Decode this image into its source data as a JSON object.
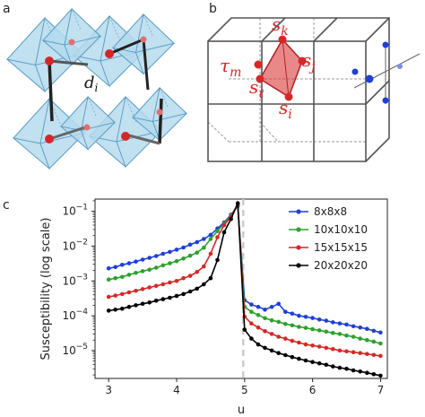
{
  "panels": {
    "a": {
      "letter": "a",
      "bond_label": "d",
      "bond_sub": "i"
    },
    "b": {
      "letter": "b",
      "site_labels": [
        {
          "sym": "s",
          "sub": "k"
        },
        {
          "sym": "τ",
          "sub": "m"
        },
        {
          "sym": "s",
          "sub": "j"
        },
        {
          "sym": "s",
          "sub": "ℓ"
        },
        {
          "sym": "s",
          "sub": "i"
        }
      ]
    },
    "c": {
      "letter": "c"
    }
  },
  "colors": {
    "octahedron_fill": "#a9d3ea",
    "octahedron_edge": "#5a9cc4",
    "atom_red": "#d62728",
    "plaquette_red": "#d62728",
    "lattice_blue": "#1f3fd6",
    "threshold_line": "#cccccc"
  },
  "chart_data": {
    "type": "line",
    "xlabel": "u",
    "ylabel": "Susceptibility (log scale)",
    "xlim": [
      2.8,
      7.1
    ],
    "ylim_log10": [
      -5.8,
      -0.65
    ],
    "yscale": "log",
    "x_ticks": [
      "3",
      "4",
      "5",
      "6",
      "7"
    ],
    "y_ticks": [
      {
        "base": "10",
        "exp": "−1"
      },
      {
        "base": "10",
        "exp": "−2"
      },
      {
        "base": "10",
        "exp": "−3"
      },
      {
        "base": "10",
        "exp": "−4"
      },
      {
        "base": "10",
        "exp": "−5"
      }
    ],
    "vline_x": 4.98,
    "legend_position": "top-right",
    "grid": false,
    "x": [
      3.0,
      3.1,
      3.2,
      3.3,
      3.4,
      3.5,
      3.6,
      3.7,
      3.8,
      3.9,
      4.0,
      4.1,
      4.2,
      4.3,
      4.4,
      4.5,
      4.6,
      4.7,
      4.8,
      4.9,
      5.0,
      5.1,
      5.2,
      5.3,
      5.4,
      5.5,
      5.6,
      5.7,
      5.8,
      5.9,
      6.0,
      6.1,
      6.2,
      6.3,
      6.4,
      6.5,
      6.6,
      6.7,
      6.8,
      6.9,
      7.0
    ],
    "series": [
      {
        "name": "8x8x8",
        "color": "#1f3fd6",
        "values": [
          0.0023,
          0.0025,
          0.0029,
          0.0032,
          0.0036,
          0.0041,
          0.0046,
          0.0052,
          0.006,
          0.0068,
          0.0079,
          0.0091,
          0.011,
          0.013,
          0.016,
          0.021,
          0.032,
          0.048,
          0.08,
          0.14,
          0.00028,
          0.00021,
          0.00018,
          0.00015,
          0.00018,
          0.00022,
          0.00013,
          0.000115,
          0.0001,
          9.3e-05,
          8.6e-05,
          7.8e-05,
          7.2e-05,
          6.5e-05,
          6e-05,
          5.6e-05,
          5e-05,
          4.6e-05,
          4.2e-05,
          3.7e-05,
          3.3e-05
        ]
      },
      {
        "name": "10x10x10",
        "color": "#2ca02c",
        "values": [
          0.0011,
          0.0012,
          0.0013,
          0.0015,
          0.0017,
          0.0019,
          0.0021,
          0.0024,
          0.0028,
          0.0032,
          0.0037,
          0.0044,
          0.0053,
          0.0065,
          0.009,
          0.016,
          0.027,
          0.045,
          0.075,
          0.15,
          0.00018,
          0.00013,
          0.000105,
          8.5e-05,
          7.4e-05,
          6.7e-05,
          5.8e-05,
          5.3e-05,
          4.8e-05,
          4.5e-05,
          4.1e-05,
          3.8e-05,
          3.5e-05,
          3.2e-05,
          3e-05,
          2.7e-05,
          2.5e-05,
          2.2e-05,
          2e-05,
          1.8e-05,
          1.6e-05
        ]
      },
      {
        "name": "15x15x15",
        "color": "#d62728",
        "values": [
          0.00035,
          0.00038,
          0.00042,
          0.00047,
          0.00052,
          0.00058,
          0.00065,
          0.00072,
          0.0008,
          0.0009,
          0.001,
          0.0012,
          0.0014,
          0.0018,
          0.0026,
          0.006,
          0.018,
          0.04,
          0.07,
          0.16,
          9.5e-05,
          6e-05,
          4.6e-05,
          3.6e-05,
          3e-05,
          2.5e-05,
          2.2e-05,
          1.9e-05,
          1.7e-05,
          1.5e-05,
          1.4e-05,
          1.3e-05,
          1.2e-05,
          1.1e-05,
          1e-05,
          9.5e-06,
          9e-06,
          8.5e-06,
          8e-06,
          7.5e-06,
          7e-06
        ]
      },
      {
        "name": "20x20x20",
        "color": "#000000",
        "values": [
          0.00014,
          0.00015,
          0.00016,
          0.00018,
          0.0002,
          0.00022,
          0.00024,
          0.00027,
          0.0003,
          0.00033,
          0.00037,
          0.00042,
          0.0005,
          0.0006,
          0.0008,
          0.0012,
          0.004,
          0.025,
          0.06,
          0.17,
          4e-05,
          2.2e-05,
          1.5e-05,
          1.2e-05,
          1e-05,
          8.5e-06,
          7.4e-06,
          6.5e-06,
          5.8e-06,
          5.2e-06,
          4.7e-06,
          4.3e-06,
          3.9e-06,
          3.5e-06,
          3.2e-06,
          3e-06,
          2.7e-06,
          2.5e-06,
          2.3e-06,
          2.1e-06,
          1.9e-06
        ]
      }
    ]
  }
}
